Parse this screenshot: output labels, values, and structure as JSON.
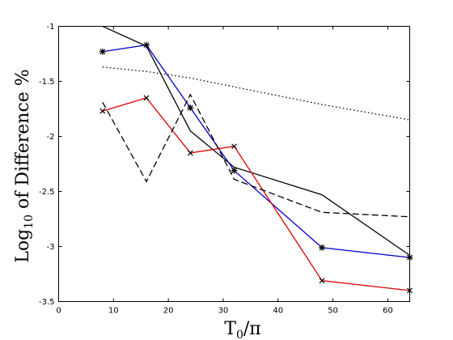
{
  "chart_data": {
    "type": "line",
    "title": "",
    "xlabel": {
      "base": "T",
      "sub": "0",
      "rest": "/π"
    },
    "ylabel": {
      "pre": "Log",
      "sub": "10",
      "rest": " of Difference %"
    },
    "xlim": [
      0,
      64
    ],
    "ylim": [
      -3.5,
      -1
    ],
    "xticks": [
      "0",
      "10",
      "20",
      "30",
      "40",
      "50",
      "60"
    ],
    "yticks": [
      "-1",
      "-1.5",
      "-2",
      "-2.5",
      "-3",
      "-3.5"
    ],
    "grid": false,
    "series": [
      {
        "color": "#000000",
        "style": "solid",
        "marker": "none",
        "points": [
          [
            8,
            -1.0
          ],
          [
            16,
            -1.18
          ],
          [
            24,
            -1.95
          ],
          [
            32,
            -2.28
          ],
          [
            48,
            -2.53
          ],
          [
            64,
            -3.08
          ]
        ]
      },
      {
        "color": "#0000cc",
        "style": "solid",
        "marker": "star",
        "points": [
          [
            8,
            -1.23
          ],
          [
            16,
            -1.17
          ],
          [
            24,
            -1.74
          ],
          [
            32,
            -2.31
          ],
          [
            48,
            -3.01
          ],
          [
            64,
            -3.1
          ]
        ]
      },
      {
        "color": "#dd0000",
        "style": "solid",
        "marker": "x",
        "points": [
          [
            8,
            -1.77
          ],
          [
            16,
            -1.65
          ],
          [
            24,
            -2.15
          ],
          [
            32,
            -2.09
          ],
          [
            48,
            -3.31
          ],
          [
            64,
            -3.4
          ]
        ]
      },
      {
        "color": "#000000",
        "style": "dashed",
        "marker": "none",
        "points": [
          [
            8,
            -1.69
          ],
          [
            16,
            -2.41
          ],
          [
            24,
            -1.62
          ],
          [
            32,
            -2.39
          ],
          [
            48,
            -2.69
          ],
          [
            64,
            -2.73
          ]
        ]
      },
      {
        "color": "#000000",
        "style": "dotted",
        "marker": "none",
        "points": [
          [
            8,
            -1.37
          ],
          [
            16,
            -1.41
          ],
          [
            24,
            -1.47
          ],
          [
            32,
            -1.55
          ],
          [
            48,
            -1.71
          ],
          [
            64,
            -1.85
          ]
        ]
      }
    ]
  }
}
